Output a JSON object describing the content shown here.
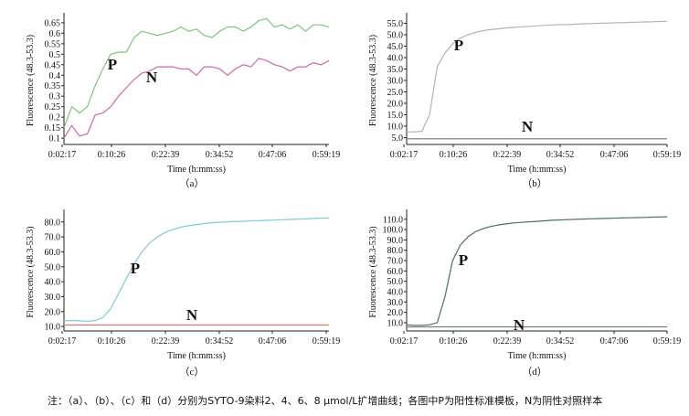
{
  "chart_data": [
    {
      "panel": "（a）",
      "type": "line",
      "ylabel": "Fluorescence (48.3-53.3)",
      "xlabel": "Time (h:mm:ss)",
      "x_ticks": [
        "0:02:17",
        "0:10:26",
        "0:22:39",
        "0:34:52",
        "0:47:06",
        "0:59:19"
      ],
      "y_ticks": [
        0.1,
        0.15,
        0.2,
        0.25,
        0.3,
        0.35,
        0.4,
        0.45,
        0.5,
        0.55,
        0.6,
        0.65
      ],
      "ylim": [
        0.07,
        0.68
      ],
      "series": [
        {
          "name": "P",
          "color": "#7cc576",
          "y": [
            0.15,
            0.25,
            0.22,
            0.25,
            0.35,
            0.43,
            0.5,
            0.51,
            0.51,
            0.58,
            0.61,
            0.6,
            0.59,
            0.6,
            0.61,
            0.63,
            0.61,
            0.62,
            0.59,
            0.58,
            0.61,
            0.63,
            0.63,
            0.61,
            0.63,
            0.66,
            0.67,
            0.63,
            0.64,
            0.62,
            0.64,
            0.61,
            0.64,
            0.64,
            0.63
          ]
        },
        {
          "name": "N",
          "color": "#c86ba8",
          "y": [
            0.1,
            0.16,
            0.11,
            0.12,
            0.21,
            0.22,
            0.25,
            0.3,
            0.34,
            0.38,
            0.41,
            0.42,
            0.44,
            0.44,
            0.44,
            0.43,
            0.43,
            0.4,
            0.44,
            0.44,
            0.43,
            0.4,
            0.43,
            0.45,
            0.44,
            0.48,
            0.47,
            0.45,
            0.44,
            0.42,
            0.44,
            0.44,
            0.46,
            0.45,
            0.47
          ]
        }
      ]
    },
    {
      "panel": "（b）",
      "type": "line",
      "ylabel": "Fluorescence (48.3-53.3)",
      "xlabel": "Time (h:mm:ss)",
      "x_ticks": [
        "0:02:17",
        "0:10:26",
        "0:22:39",
        "0:34:52",
        "0:47:06",
        "0:59:19"
      ],
      "y_ticks": [
        5.0,
        10.0,
        15.0,
        20.0,
        25.0,
        30.0,
        35.0,
        40.0,
        45.0,
        50.0,
        55.0
      ],
      "ylim": [
        2,
        58
      ],
      "series": [
        {
          "name": "P",
          "color": "#b4b4b4",
          "y": [
            7.5,
            7.5,
            7.8,
            15,
            36,
            42,
            46,
            48.5,
            50,
            51,
            51.8,
            52.3,
            52.6,
            53,
            53.2,
            53.5,
            53.7,
            53.9,
            54.1,
            54.3,
            54.4,
            54.5,
            54.6,
            54.8,
            54.9,
            55,
            55.1,
            55.2,
            55.3,
            55.4,
            55.5,
            55.6,
            55.7,
            55.8,
            55.9
          ]
        },
        {
          "name": "N",
          "color": "#6e7c6e",
          "y": [
            4.5,
            4.5,
            4.5,
            4.5,
            4.5,
            4.5,
            4.5,
            4.5,
            4.5,
            4.5,
            4.5,
            4.5,
            4.5,
            4.5,
            4.5,
            4.5,
            4.5,
            4.5,
            4.5,
            4.5,
            4.5,
            4.5,
            4.5,
            4.5,
            4.5,
            4.5,
            4.5,
            4.5,
            4.5,
            4.5,
            4.5,
            4.5,
            4.5,
            4.5,
            4.5
          ]
        }
      ]
    },
    {
      "panel": "（c）",
      "type": "line",
      "ylabel": "Fluorescence (48.3-53.3)",
      "xlabel": "Time (h:mm:ss)",
      "x_ticks": [
        "0:02:17",
        "0:10:26",
        "0:22:39",
        "0:34:52",
        "0:47:06",
        "0:59:19"
      ],
      "y_ticks": [
        10.0,
        20.0,
        30.0,
        40.0,
        50.0,
        60.0,
        70.0,
        80.0
      ],
      "ylim": [
        7,
        86
      ],
      "series": [
        {
          "name": "P",
          "color": "#7ecbd2",
          "y": [
            14,
            14,
            13.8,
            13.5,
            14,
            16,
            22,
            32,
            42,
            52,
            60,
            66,
            70,
            73,
            75,
            76.5,
            77.5,
            78.3,
            79,
            79.5,
            79.8,
            80.1,
            80.3,
            80.5,
            80.7,
            80.9,
            81.1,
            81.3,
            81.5,
            81.7,
            81.9,
            82.1,
            82.3,
            82.5,
            82.7
          ]
        },
        {
          "name": "N",
          "color": "#e07b67",
          "y": [
            11,
            11,
            11,
            11,
            11,
            11,
            11,
            11,
            11,
            11,
            11,
            11,
            11,
            11,
            11,
            11,
            11,
            11,
            11,
            11,
            11,
            11,
            11,
            11,
            11,
            11,
            11,
            11,
            11,
            11,
            11,
            11,
            11,
            11,
            11
          ]
        }
      ]
    },
    {
      "panel": "（d）",
      "type": "line",
      "ylabel": "Fluorescence (48.3-53.3)",
      "xlabel": "Time (h:mm:ss)",
      "x_ticks": [
        "0:02:17",
        "0:10:26",
        "0:22:39",
        "0:34:52",
        "0:47:06",
        "0:59:19"
      ],
      "y_ticks": [
        10.0,
        20.0,
        30.0,
        40.0,
        50.0,
        60.0,
        70.0,
        80.0,
        90.0,
        100.0,
        110.0
      ],
      "ylim": [
        2,
        116
      ],
      "series": [
        {
          "name": "P",
          "color": "#4c7066",
          "y": [
            8,
            7.5,
            7.5,
            8,
            10,
            35,
            70,
            85,
            93,
            98,
            101,
            103,
            104.5,
            105.5,
            106.5,
            107,
            107.5,
            108,
            108.5,
            109,
            109.3,
            109.6,
            109.9,
            110.2,
            110.4,
            110.6,
            110.8,
            111,
            111.2,
            111.4,
            111.6,
            111.8,
            112,
            112.2,
            112.4
          ]
        },
        {
          "name": "N",
          "color": "#6e8478",
          "y": [
            6,
            6,
            6,
            6,
            6,
            6,
            6,
            6,
            6,
            6,
            6,
            6,
            6,
            6,
            6,
            6,
            6,
            6,
            6,
            6,
            6,
            6,
            6,
            6,
            6,
            6,
            6,
            6,
            6,
            6,
            6,
            6,
            6,
            6,
            6
          ]
        }
      ]
    }
  ],
  "caption": "注：（a）、（b）、（c）和（d）分别为SYTO-9染料2、4、6、8 μmol/L扩增曲线；各图中P为阳性标准模板，N为阴性对照样本"
}
